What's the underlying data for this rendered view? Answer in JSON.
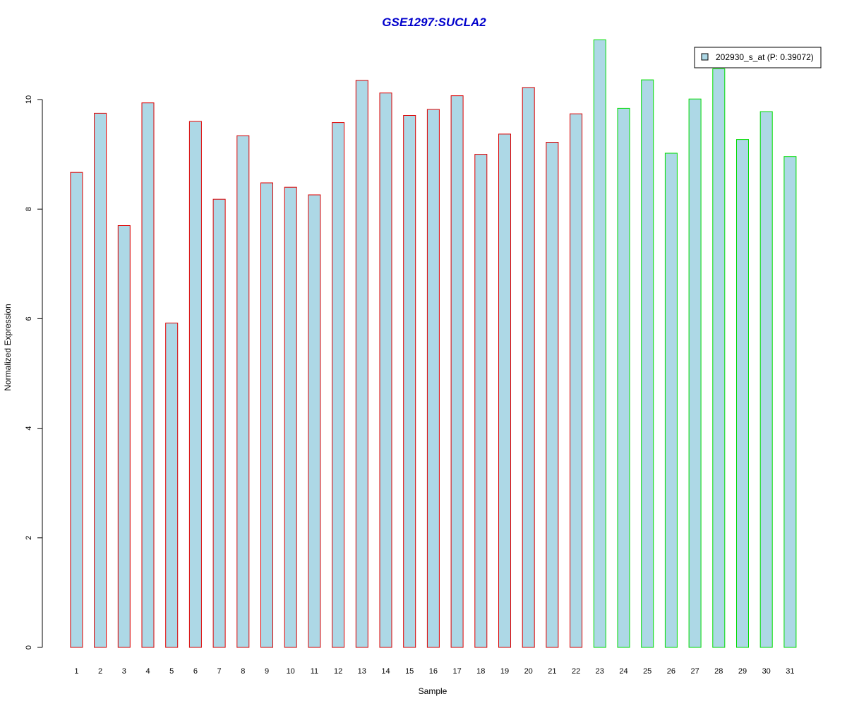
{
  "chart_data": {
    "type": "bar",
    "title": "GSE1297:SUCLA2",
    "xlabel": "Sample",
    "ylabel": "Normalized Expression",
    "ylim": [
      0,
      11.4
    ],
    "yticks": [
      0,
      2,
      4,
      6,
      8,
      10
    ],
    "grid": false,
    "legend_placement": "top-right",
    "categories": [
      "1",
      "2",
      "3",
      "4",
      "5",
      "6",
      "7",
      "8",
      "9",
      "10",
      "11",
      "12",
      "13",
      "14",
      "15",
      "16",
      "17",
      "18",
      "19",
      "20",
      "21",
      "22",
      "23",
      "24",
      "25",
      "26",
      "27",
      "28",
      "29",
      "30",
      "31"
    ],
    "series": [
      {
        "name": "202930_s_at (P: 0.39072)",
        "values": [
          8.67,
          9.75,
          7.7,
          9.94,
          5.92,
          9.6,
          8.18,
          9.34,
          8.48,
          8.4,
          8.26,
          9.58,
          10.35,
          10.12,
          9.71,
          9.82,
          10.07,
          9.0,
          9.37,
          10.22,
          9.22,
          9.74,
          11.09,
          9.84,
          10.36,
          9.02,
          10.01,
          10.56,
          9.27,
          9.78,
          8.96
        ]
      }
    ],
    "groups": [
      {
        "samples": "1-22",
        "border_color": "#dd0000"
      },
      {
        "samples": "23-31",
        "border_color": "#00dd00"
      }
    ],
    "colors": {
      "title": "#0000cc",
      "bar_fill": "#add8e6",
      "group1_border": "#dd0000",
      "group2_border": "#00dd00"
    }
  }
}
